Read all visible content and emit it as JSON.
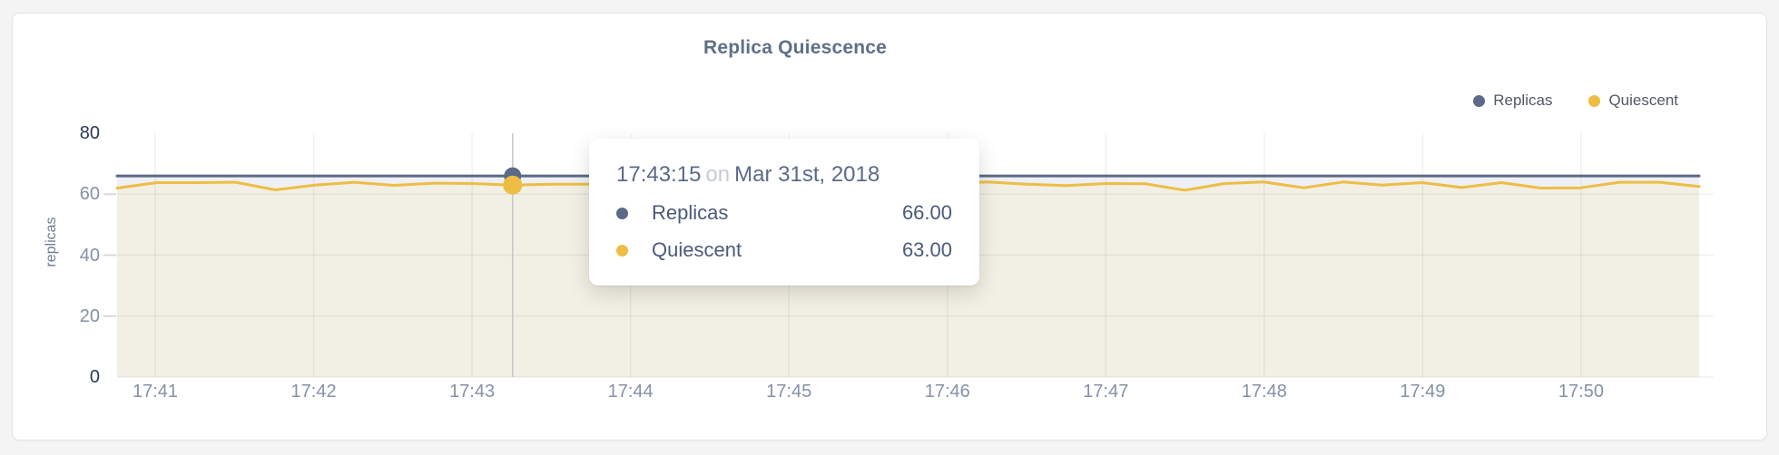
{
  "page": {
    "title": "Replica Quiescence"
  },
  "legend": {
    "items": [
      {
        "label": "Replicas",
        "color": "#5c6a87"
      },
      {
        "label": "Quiescent",
        "color": "#edbd44"
      }
    ]
  },
  "axes": {
    "y_label": "replicas",
    "y_ticks": [
      {
        "label": "80",
        "value": 80,
        "strong": true
      },
      {
        "label": "60",
        "value": 60,
        "strong": false
      },
      {
        "label": "40",
        "value": 40,
        "strong": false
      },
      {
        "label": "20",
        "value": 20,
        "strong": false
      },
      {
        "label": "0",
        "value": 0,
        "strong": true
      }
    ],
    "x_ticks": [
      {
        "label": "17:41"
      },
      {
        "label": "17:42"
      },
      {
        "label": "17:43"
      },
      {
        "label": "17:44"
      },
      {
        "label": "17:45"
      },
      {
        "label": "17:46"
      },
      {
        "label": "17:47"
      },
      {
        "label": "17:48"
      },
      {
        "label": "17:49"
      },
      {
        "label": "17:50"
      }
    ]
  },
  "tooltip": {
    "time": "17:43:15",
    "connector": "on",
    "date": "Mar 31st, 2018",
    "rows": [
      {
        "label": "Replicas",
        "value": "66.00",
        "color": "#5c6a87"
      },
      {
        "label": "Quiescent",
        "value": "63.00",
        "color": "#edbd44"
      }
    ]
  },
  "chart_data": {
    "type": "area",
    "title": "Replica Quiescence",
    "ylabel": "replicas",
    "ylim": [
      0,
      80
    ],
    "grid": true,
    "legend_position": "top-right",
    "x_start": "17:40:45",
    "x_interval_seconds": 15,
    "x_tick_labels": [
      "17:41",
      "17:42",
      "17:43",
      "17:44",
      "17:45",
      "17:46",
      "17:47",
      "17:48",
      "17:49",
      "17:50"
    ],
    "selected_index": 10,
    "selected_time": "17:43:15",
    "selected_date": "Mar 31st, 2018",
    "series": [
      {
        "name": "Replicas",
        "color": "#5c6a87",
        "fill": "#eef0f5",
        "values": [
          66,
          66,
          66,
          66,
          66,
          66,
          66,
          66,
          66,
          66,
          66,
          66,
          66,
          66,
          66,
          66,
          66,
          66,
          66,
          66,
          66,
          66,
          66,
          66,
          66,
          66,
          66,
          66,
          66,
          66,
          66,
          66,
          66,
          66,
          66,
          66,
          66,
          66,
          66,
          66,
          66
        ]
      },
      {
        "name": "Quiescent",
        "color": "#edbd44",
        "fill": "#f2efe4",
        "values": [
          62,
          63.8,
          63.8,
          63.9,
          61.4,
          63,
          63.9,
          62.9,
          63.6,
          63.5,
          63,
          63.3,
          63.3,
          63.4,
          63.3,
          63.4,
          63.3,
          63.4,
          63.3,
          63.4,
          63.3,
          63.5,
          64,
          63.3,
          62.8,
          63.5,
          63.4,
          61.3,
          63.5,
          64,
          62.1,
          64,
          63,
          63.8,
          62.2,
          63.8,
          62,
          62.1,
          63.9,
          63.9,
          62.5
        ]
      }
    ]
  }
}
